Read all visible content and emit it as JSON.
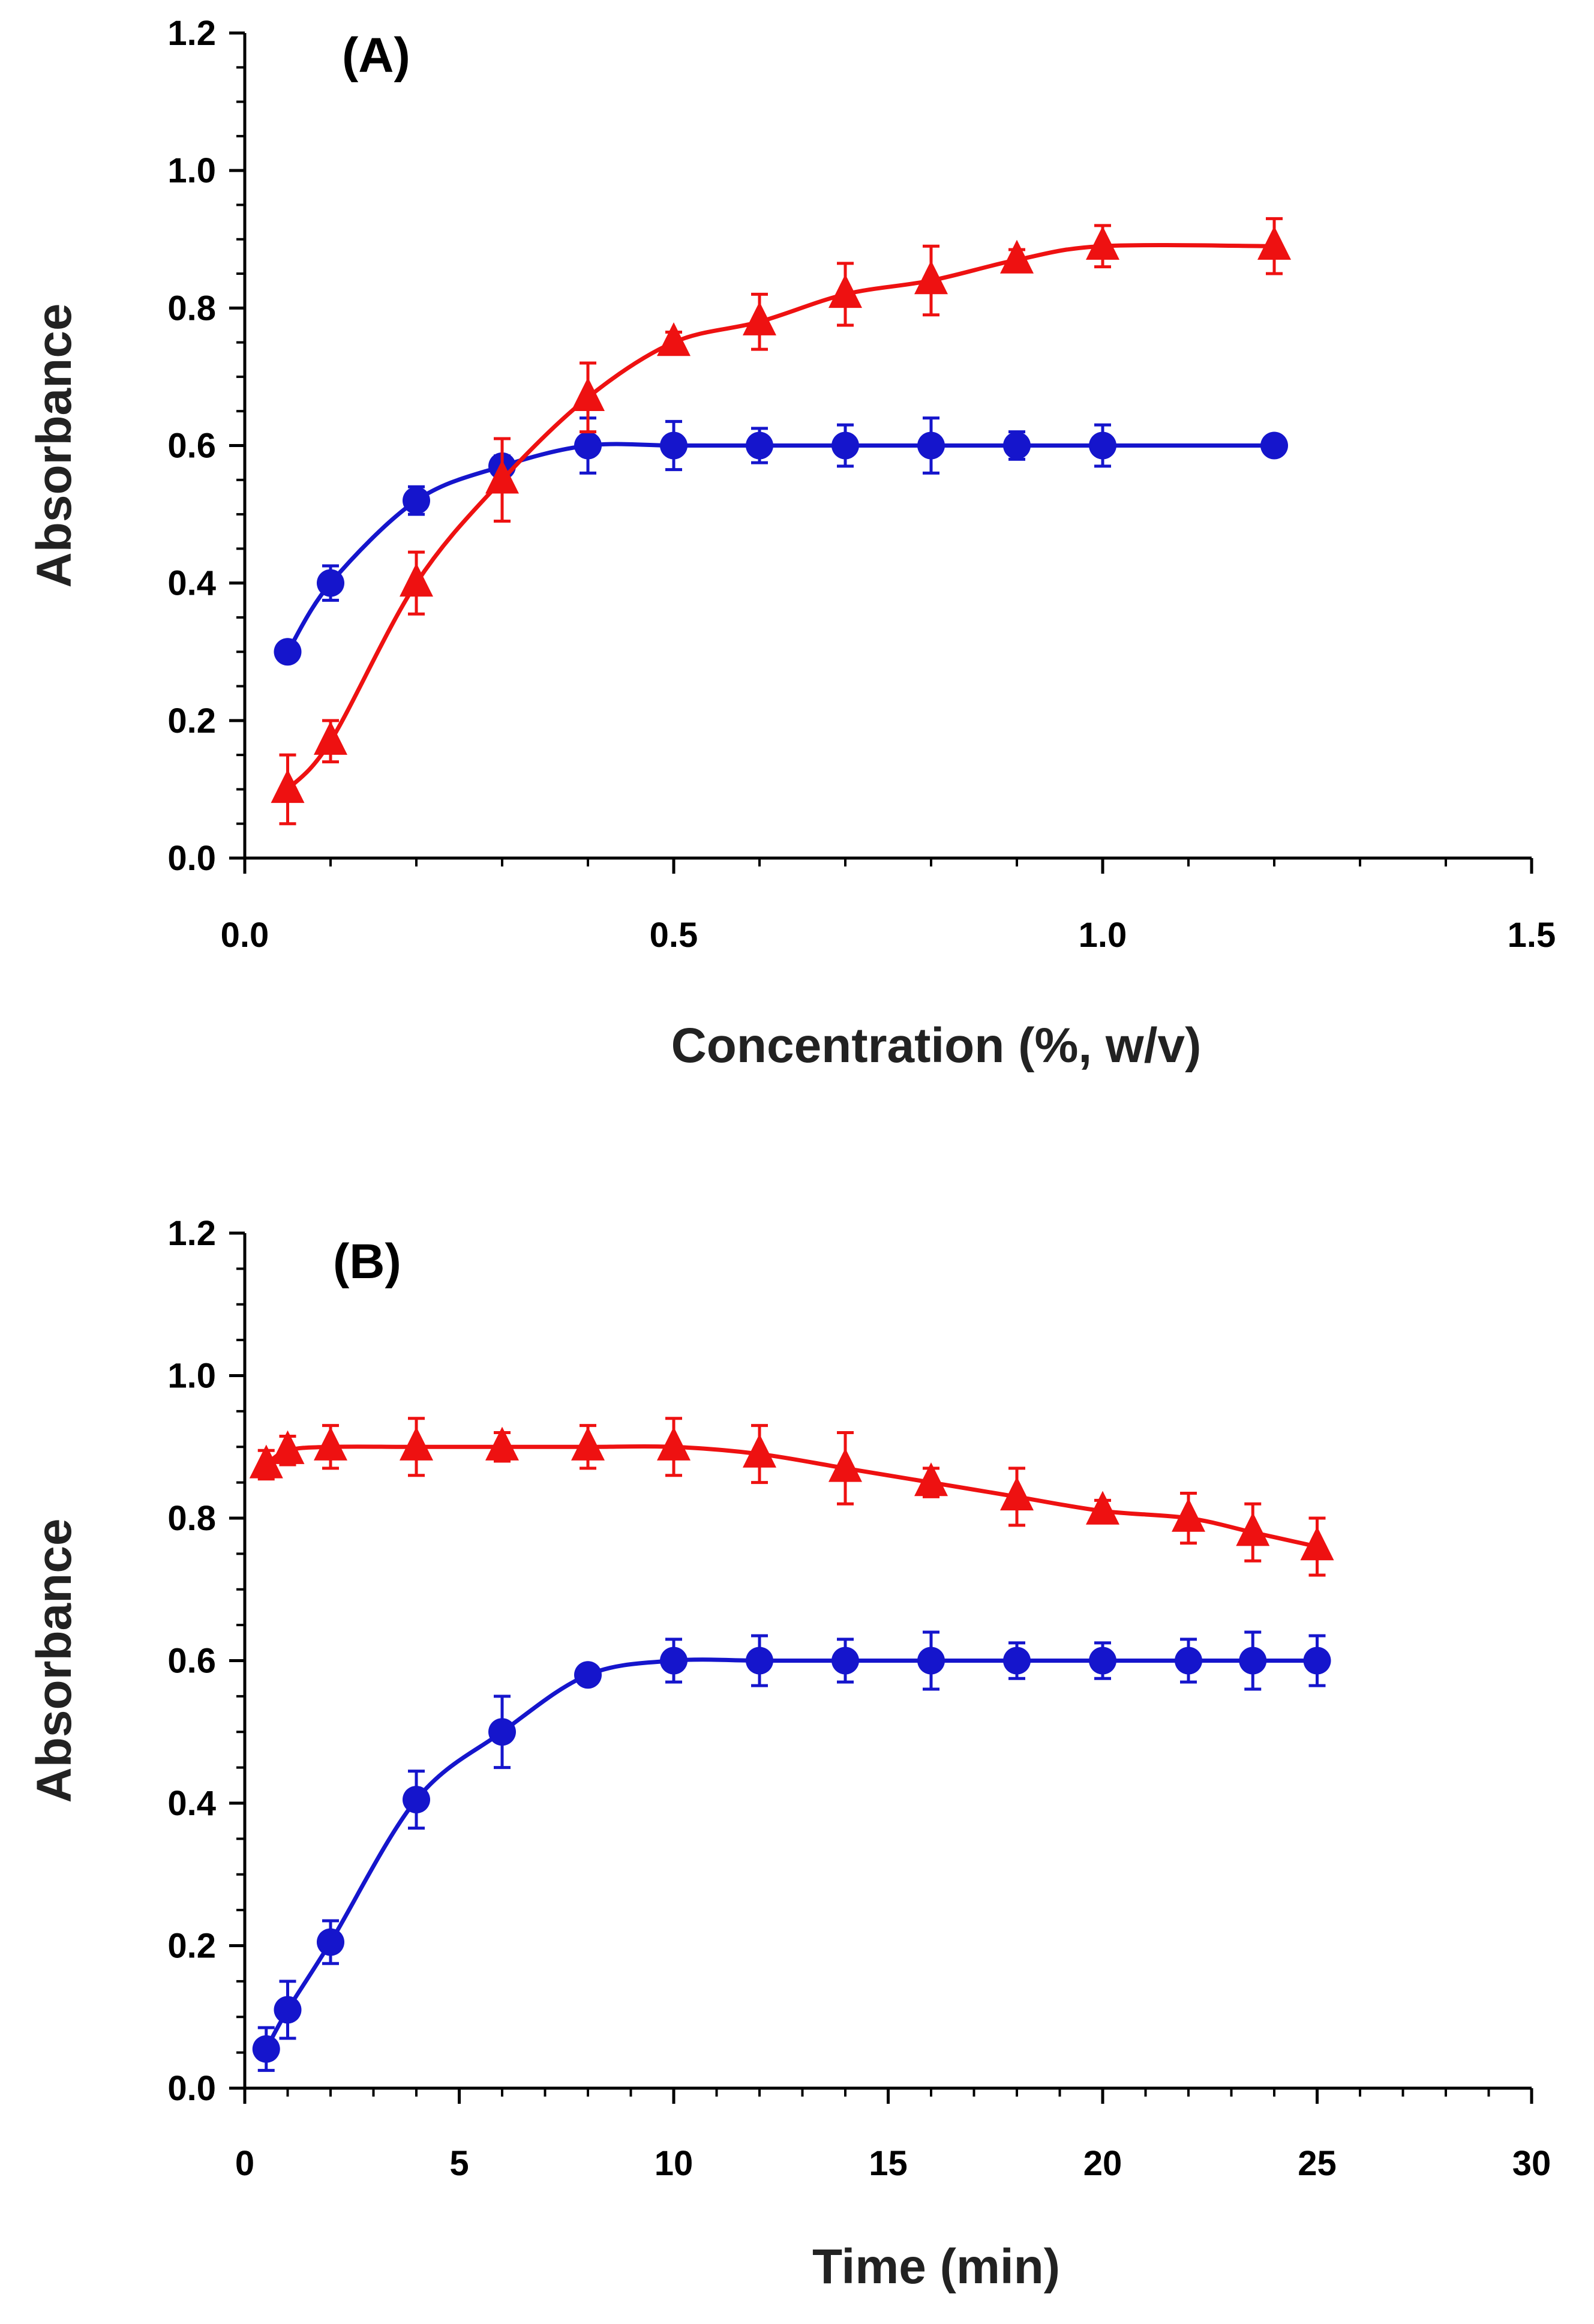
{
  "chart_data": [
    {
      "type": "line",
      "panel_label": "(A)",
      "xlabel": "Concentration (%, w/v)",
      "ylabel": "Absorbance",
      "xlim": [
        0,
        1.5
      ],
      "ylim": [
        0,
        1.2
      ],
      "x_ticks": [
        "0.0",
        "0.5",
        "1.0",
        "1.5"
      ],
      "y_ticks": [
        "0.0",
        "0.2",
        "0.4",
        "0.6",
        "0.8",
        "1.0",
        "1.2"
      ],
      "grid": false,
      "series": [
        {
          "name": "circle-series",
          "marker": "circle",
          "color": "#1515CC",
          "x": [
            0.05,
            0.1,
            0.2,
            0.3,
            0.4,
            0.5,
            0.6,
            0.7,
            0.8,
            0.9,
            1.0,
            1.2
          ],
          "y": [
            0.3,
            0.4,
            0.52,
            0.57,
            0.6,
            0.6,
            0.6,
            0.6,
            0.6,
            0.6,
            0.6,
            0.6
          ],
          "err": [
            0.01,
            0.025,
            0.02,
            0.015,
            0.04,
            0.035,
            0.025,
            0.03,
            0.04,
            0.02,
            0.03,
            0
          ]
        },
        {
          "name": "triangle-series",
          "marker": "triangle",
          "color": "#EE1111",
          "x": [
            0.05,
            0.1,
            0.2,
            0.3,
            0.4,
            0.5,
            0.6,
            0.7,
            0.8,
            0.9,
            1.0,
            1.2
          ],
          "y": [
            0.1,
            0.17,
            0.4,
            0.55,
            0.67,
            0.75,
            0.78,
            0.82,
            0.84,
            0.87,
            0.89,
            0.89
          ],
          "err": [
            0.05,
            0.03,
            0.045,
            0.06,
            0.05,
            0.015,
            0.04,
            0.045,
            0.05,
            0.015,
            0.03,
            0.04
          ]
        }
      ]
    },
    {
      "type": "line",
      "panel_label": "(B)",
      "xlabel": "Time (min)",
      "ylabel": "Absorbance",
      "xlim": [
        0,
        30
      ],
      "ylim": [
        0,
        1.2
      ],
      "x_ticks": [
        "0",
        "5",
        "10",
        "15",
        "20",
        "25",
        "30"
      ],
      "y_ticks": [
        "0.0",
        "0.2",
        "0.4",
        "0.6",
        "0.8",
        "1.0",
        "1.2"
      ],
      "grid": false,
      "series": [
        {
          "name": "circle-series",
          "marker": "circle",
          "color": "#1515CC",
          "x": [
            0.5,
            1,
            2,
            4,
            6,
            8,
            10,
            12,
            14,
            16,
            18,
            20,
            22,
            23.5,
            25
          ],
          "y": [
            0.055,
            0.11,
            0.205,
            0.405,
            0.5,
            0.58,
            0.6,
            0.6,
            0.6,
            0.6,
            0.6,
            0.6,
            0.6,
            0.6,
            0.6
          ],
          "err": [
            0.03,
            0.04,
            0.03,
            0.04,
            0.05,
            0.01,
            0.03,
            0.035,
            0.03,
            0.04,
            0.025,
            0.025,
            0.03,
            0.04,
            0.035
          ]
        },
        {
          "name": "triangle-series",
          "marker": "triangle",
          "color": "#EE1111",
          "x": [
            0.5,
            1,
            2,
            4,
            6,
            8,
            10,
            12,
            14,
            16,
            18,
            20,
            22,
            23.5,
            25
          ],
          "y": [
            0.875,
            0.895,
            0.9,
            0.9,
            0.9,
            0.9,
            0.9,
            0.89,
            0.87,
            0.85,
            0.83,
            0.81,
            0.8,
            0.78,
            0.76
          ],
          "err": [
            0.02,
            0.02,
            0.03,
            0.04,
            0.02,
            0.03,
            0.04,
            0.04,
            0.05,
            0.02,
            0.04,
            0.015,
            0.035,
            0.04,
            0.04
          ]
        }
      ]
    }
  ]
}
